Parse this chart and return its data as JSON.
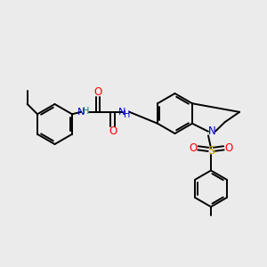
{
  "background_color": "#ebebeb",
  "atom_colors": {
    "C": "#000000",
    "N": "#0000cc",
    "O": "#ff0000",
    "S": "#ccaa00",
    "H": "#008080"
  },
  "bond_lw": 1.4,
  "figsize": [
    3.0,
    3.0
  ],
  "dpi": 100
}
